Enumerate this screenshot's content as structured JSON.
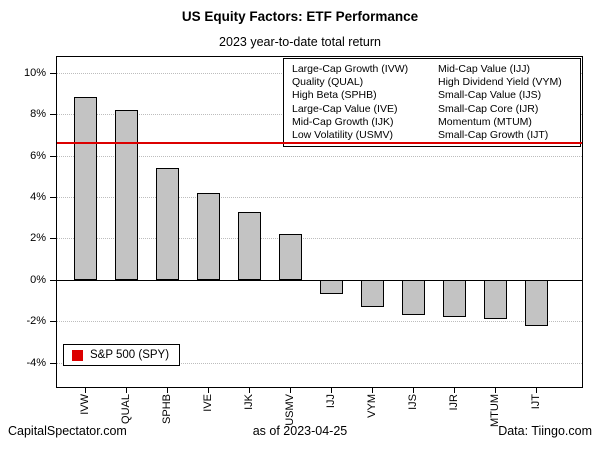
{
  "chart_data": {
    "type": "bar",
    "title": "US Equity Factors: ETF Performance",
    "subtitle": "2023 year-to-date total return",
    "categories": [
      "IVW",
      "QUAL",
      "SPHB",
      "IVE",
      "IJK",
      "USMV",
      "IJJ",
      "VYM",
      "IJS",
      "IJR",
      "MTUM",
      "IJT"
    ],
    "values": [
      8.8,
      8.2,
      5.4,
      4.2,
      3.3,
      2.2,
      -0.7,
      -1.3,
      -1.7,
      -1.8,
      -1.9,
      -2.2
    ],
    "xlabel": "",
    "ylabel": "",
    "yticks": [
      -4,
      -2,
      0,
      2,
      4,
      6,
      8,
      10
    ],
    "ytick_labels": [
      "-4%",
      "-2%",
      "0%",
      "2%",
      "4%",
      "6%",
      "8%",
      "10%"
    ],
    "ylim": [
      -5.2,
      10.8
    ],
    "grid": true,
    "bar_fill": "#c3c3c3",
    "bar_border": "#000000",
    "reference_line": {
      "value": 6.6,
      "color": "#dc0000",
      "label": "S&P 500 (SPY)"
    },
    "legend_position": "top-right"
  },
  "legend": {
    "columns": [
      [
        "Large-Cap Growth (IVW)",
        "Quality (QUAL)",
        "High Beta (SPHB)",
        "Large-Cap Value (IVE)",
        "Mid-Cap Growth (IJK)",
        "Low Volatility (USMV)"
      ],
      [
        "Mid-Cap Value (IJJ)",
        "High Dividend Yield (VYM)",
        "Small-Cap Value (IJS)",
        "Small-Cap Core (IJR)",
        "Momentum (MTUM)",
        "Small-Cap Growth (IJT)"
      ]
    ]
  },
  "spy_legend": {
    "label": "S&P 500 (SPY)",
    "color": "#dc0000"
  },
  "footer": {
    "left": "CapitalSpectator.com",
    "center": "as of 2023-04-25",
    "right": "Data: Tiingo.com"
  }
}
